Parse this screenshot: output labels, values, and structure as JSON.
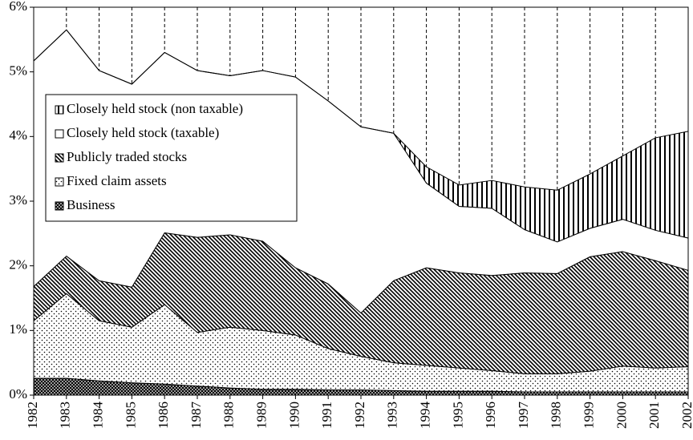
{
  "chart_data": {
    "type": "stacked-area",
    "categories": [
      "1982",
      "1983",
      "1984",
      "1985",
      "1986",
      "1987",
      "1988",
      "1989",
      "1990",
      "1991",
      "1992",
      "1993",
      "1994",
      "1995",
      "1996",
      "1997",
      "1998",
      "1999",
      "2000",
      "2001",
      "2002"
    ],
    "series": [
      {
        "name": "Business",
        "color": "#000000",
        "pattern": "crosshatch",
        "values": [
          0.26,
          0.26,
          0.22,
          0.19,
          0.17,
          0.14,
          0.11,
          0.09,
          0.09,
          0.08,
          0.08,
          0.07,
          0.06,
          0.06,
          0.06,
          0.05,
          0.05,
          0.05,
          0.05,
          0.05,
          0.05
        ]
      },
      {
        "name": "Fixed claim assets",
        "color": "#000000",
        "pattern": "dots",
        "values": [
          0.89,
          1.31,
          0.93,
          0.86,
          1.23,
          0.83,
          0.94,
          0.91,
          0.84,
          0.64,
          0.52,
          0.43,
          0.4,
          0.36,
          0.32,
          0.28,
          0.28,
          0.32,
          0.4,
          0.37,
          0.39
        ]
      },
      {
        "name": "Publicly traded stocks",
        "color": "#000000",
        "pattern": "diagonal",
        "values": [
          0.53,
          0.58,
          0.62,
          0.62,
          1.11,
          1.47,
          1.43,
          1.38,
          1.04,
          1.0,
          0.67,
          1.27,
          1.51,
          1.47,
          1.47,
          1.56,
          1.55,
          1.77,
          1.77,
          1.66,
          1.49
        ]
      },
      {
        "name": "Closely held stock (taxable)",
        "color": "#000000",
        "pattern": "none",
        "values": [
          3.49,
          3.5,
          3.25,
          3.14,
          2.79,
          2.58,
          2.46,
          2.64,
          2.95,
          2.83,
          2.88,
          2.28,
          1.31,
          1.03,
          1.04,
          0.67,
          0.49,
          0.44,
          0.5,
          0.47,
          0.5
        ]
      },
      {
        "name": "Closely held stock (non taxable)",
        "color": "#000000",
        "pattern": "vertical",
        "values": [
          0,
          0,
          0,
          0,
          0,
          0,
          0,
          0,
          0,
          0,
          0,
          0,
          0.25,
          0.33,
          0.43,
          0.66,
          0.8,
          0.84,
          0.98,
          1.43,
          1.65
        ]
      }
    ],
    "ylim": [
      0,
      6
    ],
    "yticks": [
      {
        "value": 0,
        "label": "0%"
      },
      {
        "value": 1,
        "label": "1%"
      },
      {
        "value": 2,
        "label": "2%"
      },
      {
        "value": 3,
        "label": "3%"
      },
      {
        "value": 4,
        "label": "4%"
      },
      {
        "value": 5,
        "label": "5%"
      },
      {
        "value": 6,
        "label": "6%"
      }
    ],
    "legend": "center left"
  }
}
